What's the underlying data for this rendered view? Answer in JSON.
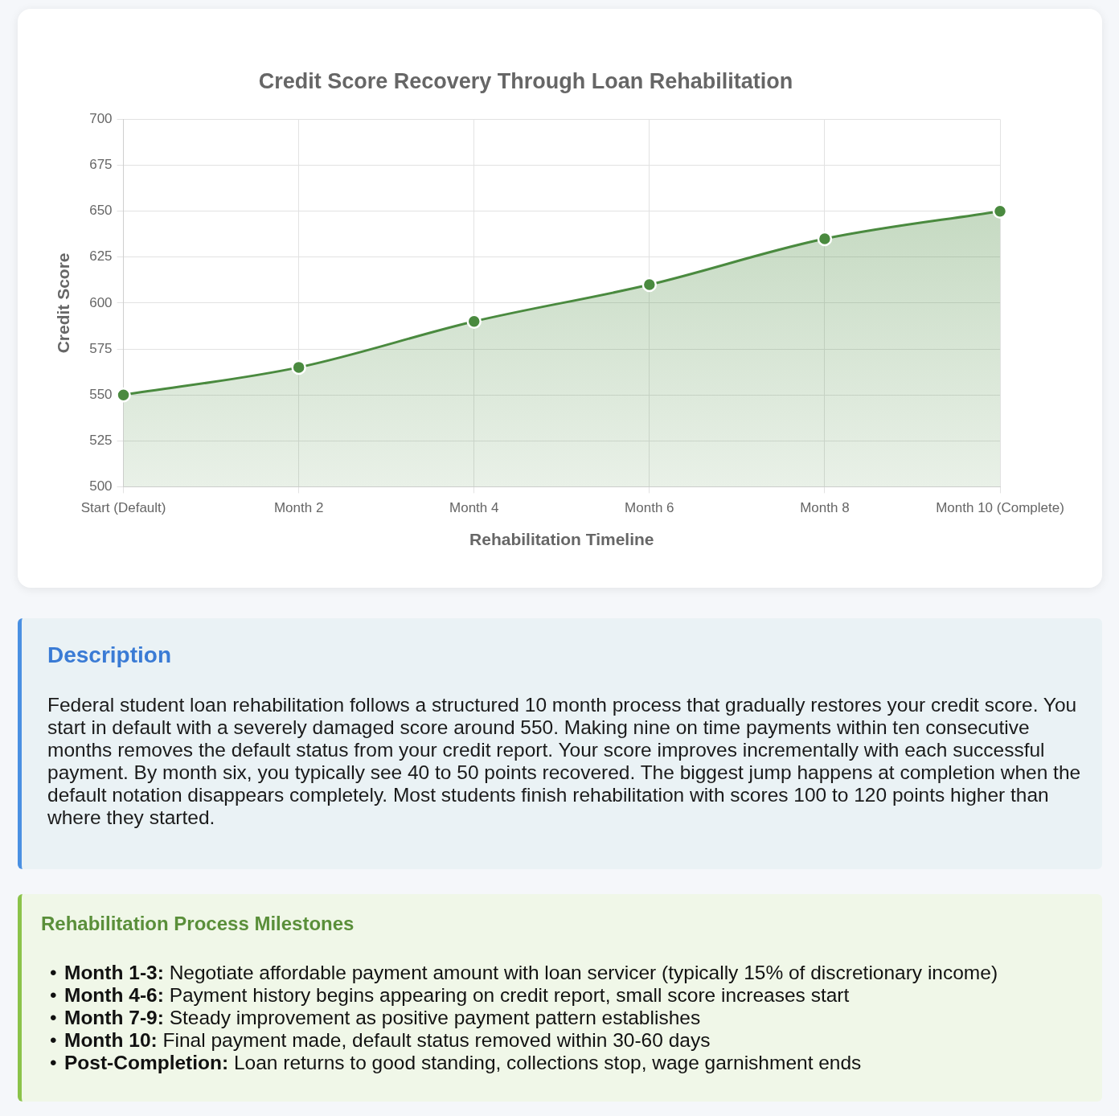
{
  "chart_data": {
    "type": "area",
    "title": "Credit Score Recovery Through Loan Rehabilitation",
    "xlabel": "Rehabilitation Timeline",
    "ylabel": "Credit Score",
    "categories": [
      "Start (Default)",
      "Month 2",
      "Month 4",
      "Month 6",
      "Month 8",
      "Month 10 (Complete)"
    ],
    "values": [
      550,
      565,
      590,
      610,
      635,
      650
    ],
    "color": "#4a8a3f",
    "ylim": [
      500,
      700
    ],
    "yticks": [
      500,
      525,
      550,
      575,
      600,
      625,
      650,
      675,
      700
    ],
    "grid": true,
    "marker": "circle",
    "annotations": [
      "Description",
      "Federal student loan rehabilitation follows a structured 10 month process that gradually restores your credit score. You start in default with a severely damaged score around 550. Making nine on time payments within ten consecutive months removes the default status from your credit report. Your score improves incrementally with each successful payment. By month six, you typically see 40 to 50 points recovered. The biggest jump happens at completion when the default notation disappears completely. Most students finish rehabilitation with scores 100 to 120 points higher than where they started.",
      "Rehabilitation Process Milestones",
      "• Month 1-3: Negotiate affordable payment amount with loan servicer (typically 15% of discretionary income)",
      "• Month 4-6: Payment history begins appearing on credit report, small score increases start",
      "• Month 7-9: Steady improvement as positive payment pattern establishes",
      "• Month 10: Final payment made, default status removed within 30-60 days",
      "• Post-Completion: Loan returns to good standing, collections stop, wage garnishment ends"
    ]
  }
}
